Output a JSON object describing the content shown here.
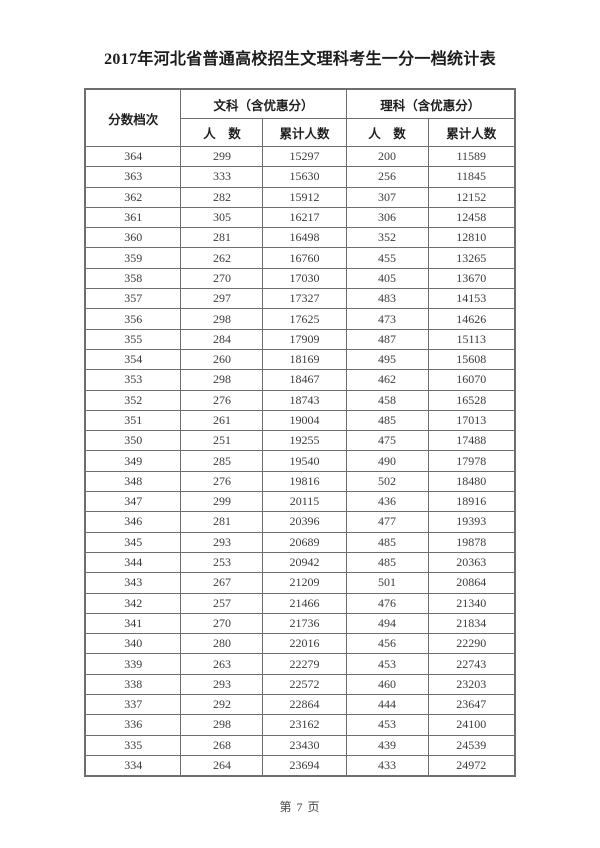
{
  "page": {
    "title": "2017年河北省普通高校招生文理科考生一分一档统计表",
    "footer": "第 7 页"
  },
  "table": {
    "headers": {
      "score_tier": "分数档次",
      "liberal_arts_group": "文科（含优惠分）",
      "science_group": "理科（含优惠分）",
      "count": "人　数",
      "cumulative": "累计人数"
    },
    "columns": [
      "score_tier",
      "liberal_count",
      "liberal_cumulative",
      "science_count",
      "science_cumulative"
    ],
    "rows": [
      [
        364,
        299,
        15297,
        200,
        11589
      ],
      [
        363,
        333,
        15630,
        256,
        11845
      ],
      [
        362,
        282,
        15912,
        307,
        12152
      ],
      [
        361,
        305,
        16217,
        306,
        12458
      ],
      [
        360,
        281,
        16498,
        352,
        12810
      ],
      [
        359,
        262,
        16760,
        455,
        13265
      ],
      [
        358,
        270,
        17030,
        405,
        13670
      ],
      [
        357,
        297,
        17327,
        483,
        14153
      ],
      [
        356,
        298,
        17625,
        473,
        14626
      ],
      [
        355,
        284,
        17909,
        487,
        15113
      ],
      [
        354,
        260,
        18169,
        495,
        15608
      ],
      [
        353,
        298,
        18467,
        462,
        16070
      ],
      [
        352,
        276,
        18743,
        458,
        16528
      ],
      [
        351,
        261,
        19004,
        485,
        17013
      ],
      [
        350,
        251,
        19255,
        475,
        17488
      ],
      [
        349,
        285,
        19540,
        490,
        17978
      ],
      [
        348,
        276,
        19816,
        502,
        18480
      ],
      [
        347,
        299,
        20115,
        436,
        18916
      ],
      [
        346,
        281,
        20396,
        477,
        19393
      ],
      [
        345,
        293,
        20689,
        485,
        19878
      ],
      [
        344,
        253,
        20942,
        485,
        20363
      ],
      [
        343,
        267,
        21209,
        501,
        20864
      ],
      [
        342,
        257,
        21466,
        476,
        21340
      ],
      [
        341,
        270,
        21736,
        494,
        21834
      ],
      [
        340,
        280,
        22016,
        456,
        22290
      ],
      [
        339,
        263,
        22279,
        453,
        22743
      ],
      [
        338,
        293,
        22572,
        460,
        23203
      ],
      [
        337,
        292,
        22864,
        444,
        23647
      ],
      [
        336,
        298,
        23162,
        453,
        24100
      ],
      [
        335,
        268,
        23430,
        439,
        24539
      ],
      [
        334,
        264,
        23694,
        433,
        24972
      ]
    ]
  }
}
